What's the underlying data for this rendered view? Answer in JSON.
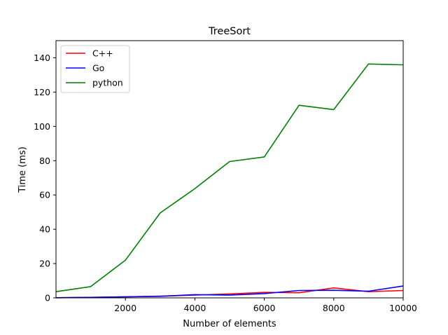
{
  "chart_data": {
    "type": "line",
    "title": "TreeSort",
    "xlabel": "Number of elements",
    "ylabel": "Time (ms)",
    "xlim": [
      0,
      10000
    ],
    "ylim": [
      0,
      150
    ],
    "x_ticks": [
      2000,
      4000,
      6000,
      8000,
      10000
    ],
    "y_ticks": [
      0,
      20,
      40,
      60,
      80,
      100,
      120,
      140
    ],
    "grid": false,
    "legend_position": "top-left",
    "x": [
      0,
      1000,
      2000,
      3000,
      4000,
      5000,
      6000,
      7000,
      8000,
      9000,
      10000
    ],
    "series": [
      {
        "name": "C++",
        "color": "#ff0000",
        "values": [
          0.1,
          0.3,
          0.6,
          1.0,
          1.6,
          2.3,
          3.2,
          3.0,
          5.8,
          3.6,
          4.3
        ]
      },
      {
        "name": "Go",
        "color": "#0000ff",
        "values": [
          0.1,
          0.3,
          0.6,
          0.9,
          1.9,
          1.6,
          2.5,
          4.3,
          4.4,
          3.9,
          6.9
        ]
      },
      {
        "name": "python",
        "color": "#008000",
        "values": [
          3.6,
          6.6,
          22.0,
          49.5,
          63.7,
          79.5,
          82.2,
          112.3,
          109.8,
          136.4,
          135.9
        ]
      }
    ]
  }
}
